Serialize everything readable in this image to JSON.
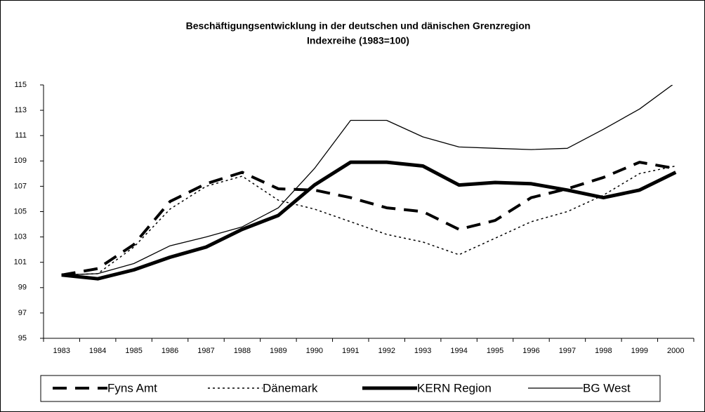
{
  "chart_data": {
    "type": "line",
    "title": "Beschäftigungsentwicklung in der deutschen und dänischen Grenzregion",
    "subtitle": "Indexreihe (1983=100)",
    "categories": [
      "1983",
      "1984",
      "1985",
      "1986",
      "1987",
      "1988",
      "1989",
      "1990",
      "1991",
      "1992",
      "1993",
      "1994",
      "1995",
      "1996",
      "1997",
      "1998",
      "1999",
      "2000"
    ],
    "series": [
      {
        "name": "Fyns Amt",
        "color": "#000000",
        "dash": "dashed",
        "width": 4,
        "values": [
          100,
          100.5,
          102.4,
          105.8,
          107.2,
          108.1,
          106.8,
          106.7,
          106.1,
          105.3,
          105.0,
          103.6,
          104.3,
          106.1,
          106.8,
          107.7,
          108.9,
          108.4
        ]
      },
      {
        "name": "Dänemark",
        "color": "#000000",
        "dash": "dotted",
        "width": 1.5,
        "values": [
          100,
          100.1,
          102.2,
          105.2,
          107.0,
          107.8,
          105.9,
          105.2,
          104.2,
          103.2,
          102.6,
          101.6,
          102.9,
          104.2,
          105.0,
          106.3,
          108.0,
          108.6
        ]
      },
      {
        "name": "KERN Region",
        "color": "#000000",
        "dash": "solid",
        "width": 5,
        "values": [
          100,
          99.7,
          100.4,
          101.4,
          102.2,
          103.6,
          104.7,
          107.1,
          108.9,
          108.9,
          108.6,
          107.1,
          107.3,
          107.2,
          106.7,
          106.1,
          106.7,
          108.1
        ]
      },
      {
        "name": "BG West",
        "color": "#000000",
        "dash": "solid",
        "width": 1.3,
        "values": [
          100,
          100.1,
          100.9,
          102.3,
          103.0,
          103.8,
          105.3,
          108.4,
          112.2,
          112.2,
          110.9,
          110.1,
          110.0,
          109.9,
          110.0,
          111.5,
          113.1,
          115.2
        ]
      }
    ],
    "ylim": [
      95,
      115
    ],
    "yticks": [
      95,
      97,
      99,
      101,
      103,
      105,
      107,
      109,
      111,
      113,
      115
    ],
    "grid": false,
    "legend": "bottom"
  }
}
